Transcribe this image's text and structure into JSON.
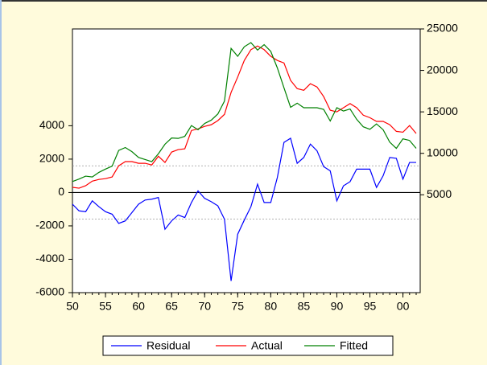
{
  "chart_data": {
    "type": "line",
    "x": [
      1950,
      1951,
      1952,
      1953,
      1954,
      1955,
      1956,
      1957,
      1958,
      1959,
      1960,
      1961,
      1962,
      1963,
      1964,
      1965,
      1966,
      1967,
      1968,
      1969,
      1970,
      1971,
      1972,
      1973,
      1974,
      1975,
      1976,
      1977,
      1978,
      1979,
      1980,
      1981,
      1982,
      1983,
      1984,
      1985,
      1986,
      1987,
      1988,
      1989,
      1990,
      1991,
      1992,
      1993,
      1994,
      1995,
      1996,
      1997,
      1998,
      1999,
      2000,
      2001,
      2002
    ],
    "series": [
      {
        "name": "Residual",
        "color": "#0000ff",
        "axis": "y",
        "values": [
          -700,
          -1100,
          -1150,
          -500,
          -850,
          -1150,
          -1300,
          -1850,
          -1700,
          -1200,
          -700,
          -450,
          -400,
          -300,
          -2200,
          -1700,
          -1350,
          -1500,
          -600,
          100,
          -350,
          -550,
          -800,
          -1600,
          -5300,
          -2500,
          -1650,
          -850,
          500,
          -600,
          -600,
          900,
          3000,
          3250,
          1750,
          2100,
          2900,
          2500,
          1550,
          1300,
          -500,
          400,
          650,
          1400,
          1400,
          1400,
          300,
          1000,
          2100,
          2050,
          800,
          1800,
          1800
        ]
      },
      {
        "name": "Actual",
        "color": "#ff0000",
        "axis": "y2",
        "values": [
          5900,
          5800,
          6100,
          6650,
          6850,
          6950,
          7150,
          8500,
          9000,
          9000,
          8800,
          8800,
          8600,
          9650,
          8900,
          10150,
          10450,
          10550,
          12750,
          12950,
          13250,
          13450,
          13950,
          14700,
          17350,
          19200,
          21200,
          22500,
          22950,
          22500,
          21700,
          21200,
          20900,
          18800,
          17800,
          17600,
          18400,
          18000,
          16850,
          15200,
          15000,
          15500,
          16000,
          15500,
          14600,
          14300,
          13850,
          13850,
          13450,
          12650,
          12550,
          13350,
          12400
        ]
      },
      {
        "name": "Fitted",
        "color": "#008000",
        "axis": "y2",
        "values": [
          6600,
          6900,
          7250,
          7150,
          7700,
          8100,
          8450,
          10350,
          10700,
          10200,
          9500,
          9250,
          9000,
          9950,
          11100,
          11850,
          11800,
          12050,
          13350,
          12850,
          13600,
          14000,
          14750,
          16300,
          22650,
          21700,
          22850,
          23350,
          22450,
          23100,
          22300,
          20300,
          17900,
          15550,
          16050,
          15500,
          15500,
          15500,
          15300,
          13900,
          15500,
          15100,
          15350,
          14100,
          13200,
          12900,
          13550,
          12850,
          11350,
          10600,
          11750,
          11550,
          10600
        ]
      }
    ],
    "xlim": [
      1950,
      2002
    ],
    "xticks": [
      {
        "value": 1950,
        "label": "50"
      },
      {
        "value": 1955,
        "label": "55"
      },
      {
        "value": 1960,
        "label": "60"
      },
      {
        "value": 1965,
        "label": "65"
      },
      {
        "value": 1970,
        "label": "70"
      },
      {
        "value": 1975,
        "label": "75"
      },
      {
        "value": 1980,
        "label": "80"
      },
      {
        "value": 1985,
        "label": "85"
      },
      {
        "value": 1990,
        "label": "90"
      },
      {
        "value": 1995,
        "label": "95"
      },
      {
        "value": 2000,
        "label": "00"
      }
    ],
    "ylim": [
      -6000,
      9800
    ],
    "yticks": [
      -6000,
      -4000,
      -2000,
      0,
      2000,
      4000
    ],
    "y2lim": [
      -6800,
      25000
    ],
    "y2ticks": [
      5000,
      10000,
      15000,
      20000,
      25000
    ],
    "ref_lines": [
      {
        "value": 0,
        "dashed": false
      },
      {
        "value": 1600,
        "dashed": true
      },
      {
        "value": -1600,
        "dashed": true
      }
    ],
    "legend": "bottom"
  }
}
